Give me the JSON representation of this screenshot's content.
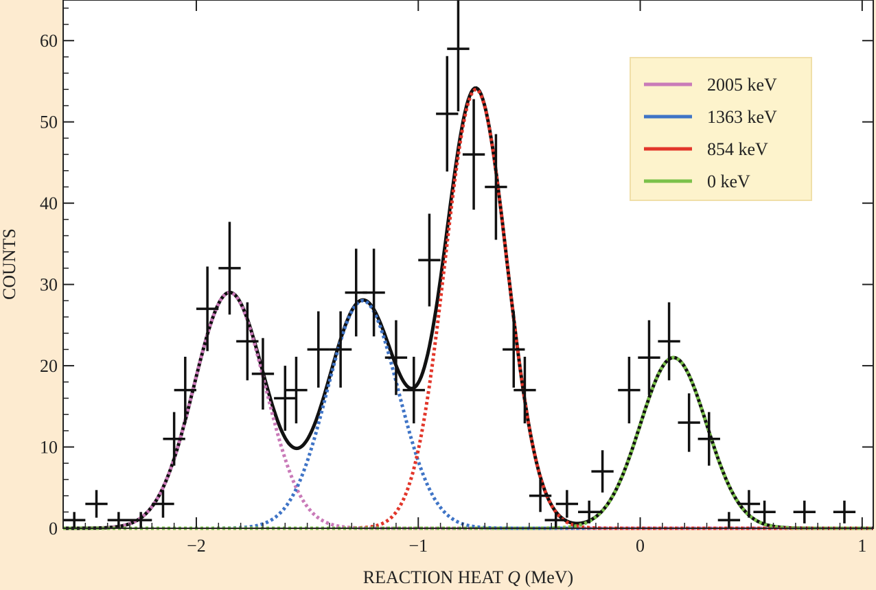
{
  "chart_data": {
    "type": "scatter",
    "xlabel": "REACTION HEAT ",
    "xlabel_symbol": "Q",
    "xlabel_unit": " (MeV)",
    "ylabel": "COUNTS",
    "xlim": [
      -2.6,
      1.05
    ],
    "ylim": [
      0,
      65
    ],
    "xticks": [
      -2,
      -1,
      0,
      1
    ],
    "xtick_labels": [
      "−2",
      "−1",
      "0",
      "1"
    ],
    "yticks": [
      0,
      10,
      20,
      30,
      40,
      50,
      60
    ],
    "ytick_labels": [
      "0",
      "10",
      "20",
      "30",
      "40",
      "50",
      "60"
    ],
    "grid": false,
    "legend_position": "top-right",
    "colors": {
      "background": "#fdebd0",
      "plot": "#ffffff",
      "legend_bg": "#fdf3cc",
      "data": "#111111",
      "total_fit": "#111111"
    },
    "data_points": {
      "bin_width": 0.1,
      "x": [
        -2.55,
        -2.45,
        -2.35,
        -2.25,
        -2.15,
        -2.1,
        -2.05,
        -1.95,
        -1.85,
        -1.77,
        -1.7,
        -1.6,
        -1.55,
        -1.45,
        -1.35,
        -1.28,
        -1.2,
        -1.1,
        -1.02,
        -0.95,
        -0.87,
        -0.82,
        -0.75,
        -0.65,
        -0.57,
        -0.52,
        -0.45,
        -0.38,
        -0.33,
        -0.23,
        -0.17,
        -0.05,
        0.04,
        0.13,
        0.22,
        0.31,
        0.4,
        0.49,
        0.56,
        0.74,
        0.92
      ],
      "y": [
        1,
        3,
        1,
        1,
        3,
        11,
        17,
        27,
        32,
        23,
        19,
        16,
        17,
        22,
        22,
        29,
        29,
        21,
        17,
        33,
        51,
        59,
        46,
        42,
        22,
        17,
        4,
        1,
        3,
        2,
        7,
        17,
        21,
        23,
        13,
        11,
        1,
        3,
        2,
        2,
        2
      ],
      "err": [
        1,
        1.7,
        1,
        1,
        1.7,
        3.3,
        4.1,
        5.2,
        5.7,
        4.8,
        4.4,
        4,
        4.1,
        4.7,
        4.7,
        5.4,
        5.4,
        4.6,
        4.1,
        5.7,
        7.1,
        7.7,
        6.8,
        6.5,
        4.7,
        4.1,
        2,
        1,
        1.7,
        1.4,
        2.6,
        4.1,
        4.6,
        4.8,
        3.6,
        3.3,
        1,
        1.7,
        1.4,
        1.4,
        1.4
      ]
    },
    "series": [
      {
        "name": "2005 keV",
        "color": "#c97ab8",
        "center": -1.85,
        "amplitude": 29,
        "sigma": 0.16
      },
      {
        "name": "1363 keV",
        "color": "#3f74c6",
        "center": -1.25,
        "amplitude": 28,
        "sigma": 0.16
      },
      {
        "name": "854 keV",
        "color": "#e2362a",
        "center": -0.74,
        "amplitude": 54,
        "sigma": 0.14
      },
      {
        "name": "0 keV",
        "color": "#7bc14a",
        "center": 0.15,
        "amplitude": 21,
        "sigma": 0.15
      }
    ]
  }
}
